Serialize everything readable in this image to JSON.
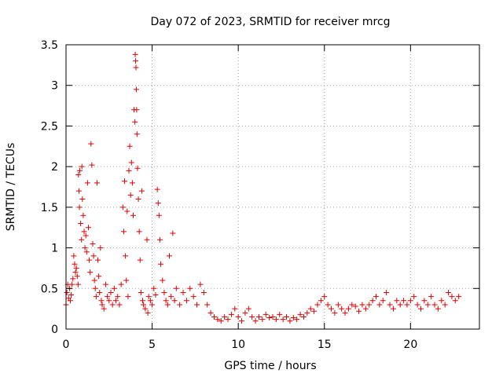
{
  "chart_data": {
    "type": "scatter",
    "title": "Day 072 of 2023, SRMTID for receiver mrcg",
    "xlabel": "GPS time / hours",
    "ylabel": "SRMTID / TECUs",
    "xlim": [
      0,
      24
    ],
    "ylim": [
      0,
      3.5
    ],
    "xticks": [
      0,
      5,
      10,
      15,
      20
    ],
    "yticks": [
      0,
      0.5,
      1,
      1.5,
      2,
      2.5,
      3,
      3.5
    ],
    "xtick_labels": [
      "0",
      "5",
      "10",
      "15",
      "20"
    ],
    "ytick_labels": [
      "0",
      "0.5",
      "1",
      "1.5",
      "2",
      "2.5",
      "3",
      "3.5"
    ],
    "grid": true,
    "marker": "+",
    "color": "#e00000",
    "series": [
      {
        "name": "SRMTID",
        "points": [
          [
            0.0,
            0.3
          ],
          [
            0.05,
            0.45
          ],
          [
            0.1,
            0.55
          ],
          [
            0.15,
            0.38
          ],
          [
            0.2,
            0.5
          ],
          [
            0.25,
            0.35
          ],
          [
            0.3,
            0.42
          ],
          [
            0.35,
            0.55
          ],
          [
            0.4,
            0.62
          ],
          [
            0.45,
            0.9
          ],
          [
            0.5,
            0.8
          ],
          [
            0.55,
            0.7
          ],
          [
            0.6,
            0.75
          ],
          [
            0.65,
            0.65
          ],
          [
            0.7,
            0.55
          ],
          [
            0.72,
            1.9
          ],
          [
            0.75,
            1.7
          ],
          [
            0.78,
            1.5
          ],
          [
            0.8,
            1.95
          ],
          [
            0.85,
            1.3
          ],
          [
            0.9,
            1.1
          ],
          [
            0.92,
            2.0
          ],
          [
            0.95,
            1.6
          ],
          [
            1.0,
            1.4
          ],
          [
            1.05,
            1.2
          ],
          [
            1.1,
            1.0
          ],
          [
            1.15,
            1.15
          ],
          [
            1.2,
            0.95
          ],
          [
            1.25,
            1.8
          ],
          [
            1.3,
            1.25
          ],
          [
            1.35,
            0.85
          ],
          [
            1.4,
            0.7
          ],
          [
            1.45,
            2.28
          ],
          [
            1.5,
            2.02
          ],
          [
            1.55,
            1.05
          ],
          [
            1.6,
            0.9
          ],
          [
            1.65,
            0.6
          ],
          [
            1.7,
            0.5
          ],
          [
            1.75,
            0.4
          ],
          [
            1.8,
            1.8
          ],
          [
            1.85,
            0.85
          ],
          [
            1.9,
            0.65
          ],
          [
            1.95,
            0.45
          ],
          [
            2.0,
            1.0
          ],
          [
            2.05,
            0.35
          ],
          [
            2.1,
            0.3
          ],
          [
            2.2,
            0.25
          ],
          [
            2.3,
            0.55
          ],
          [
            2.4,
            0.4
          ],
          [
            2.5,
            0.35
          ],
          [
            2.6,
            0.45
          ],
          [
            2.7,
            0.3
          ],
          [
            2.8,
            0.5
          ],
          [
            2.9,
            0.35
          ],
          [
            3.0,
            0.4
          ],
          [
            3.1,
            0.3
          ],
          [
            3.2,
            0.55
          ],
          [
            3.3,
            1.5
          ],
          [
            3.35,
            1.2
          ],
          [
            3.4,
            1.82
          ],
          [
            3.45,
            0.9
          ],
          [
            3.5,
            0.6
          ],
          [
            3.55,
            1.45
          ],
          [
            3.6,
            0.4
          ],
          [
            3.65,
            1.95
          ],
          [
            3.7,
            2.25
          ],
          [
            3.75,
            1.65
          ],
          [
            3.8,
            2.05
          ],
          [
            3.85,
            1.8
          ],
          [
            3.9,
            1.4
          ],
          [
            3.95,
            2.7
          ],
          [
            4.0,
            2.55
          ],
          [
            4.02,
            3.38
          ],
          [
            4.04,
            3.3
          ],
          [
            4.06,
            3.22
          ],
          [
            4.08,
            2.95
          ],
          [
            4.1,
            2.7
          ],
          [
            4.12,
            2.4
          ],
          [
            4.15,
            1.98
          ],
          [
            4.2,
            1.6
          ],
          [
            4.25,
            1.2
          ],
          [
            4.3,
            0.85
          ],
          [
            4.35,
            0.45
          ],
          [
            4.4,
            1.7
          ],
          [
            4.45,
            0.35
          ],
          [
            4.5,
            0.3
          ],
          [
            4.6,
            0.25
          ],
          [
            4.7,
            1.1
          ],
          [
            4.75,
            0.2
          ],
          [
            4.8,
            0.4
          ],
          [
            4.9,
            0.35
          ],
          [
            5.0,
            0.3
          ],
          [
            5.1,
            0.5
          ],
          [
            5.2,
            0.42
          ],
          [
            5.3,
            1.72
          ],
          [
            5.35,
            1.55
          ],
          [
            5.4,
            1.4
          ],
          [
            5.45,
            1.1
          ],
          [
            5.5,
            0.8
          ],
          [
            5.6,
            0.6
          ],
          [
            5.7,
            0.45
          ],
          [
            5.8,
            0.35
          ],
          [
            5.9,
            0.3
          ],
          [
            6.0,
            0.9
          ],
          [
            6.1,
            0.4
          ],
          [
            6.2,
            1.18
          ],
          [
            6.3,
            0.35
          ],
          [
            6.4,
            0.5
          ],
          [
            6.6,
            0.3
          ],
          [
            6.8,
            0.45
          ],
          [
            7.0,
            0.35
          ],
          [
            7.2,
            0.5
          ],
          [
            7.4,
            0.4
          ],
          [
            7.6,
            0.3
          ],
          [
            7.8,
            0.55
          ],
          [
            8.0,
            0.45
          ],
          [
            8.2,
            0.3
          ],
          [
            8.4,
            0.2
          ],
          [
            8.6,
            0.15
          ],
          [
            8.8,
            0.12
          ],
          [
            9.0,
            0.1
          ],
          [
            9.2,
            0.15
          ],
          [
            9.4,
            0.12
          ],
          [
            9.6,
            0.18
          ],
          [
            9.8,
            0.25
          ],
          [
            10.0,
            0.15
          ],
          [
            10.2,
            0.1
          ],
          [
            10.4,
            0.2
          ],
          [
            10.6,
            0.25
          ],
          [
            10.8,
            0.15
          ],
          [
            11.0,
            0.1
          ],
          [
            11.2,
            0.15
          ],
          [
            11.4,
            0.12
          ],
          [
            11.6,
            0.18
          ],
          [
            11.8,
            0.14
          ],
          [
            12.0,
            0.15
          ],
          [
            12.2,
            0.12
          ],
          [
            12.4,
            0.18
          ],
          [
            12.6,
            0.12
          ],
          [
            12.8,
            0.15
          ],
          [
            13.0,
            0.1
          ],
          [
            13.2,
            0.14
          ],
          [
            13.4,
            0.12
          ],
          [
            13.6,
            0.18
          ],
          [
            13.8,
            0.15
          ],
          [
            14.0,
            0.2
          ],
          [
            14.2,
            0.25
          ],
          [
            14.4,
            0.22
          ],
          [
            14.6,
            0.3
          ],
          [
            14.8,
            0.35
          ],
          [
            15.0,
            0.4
          ],
          [
            15.2,
            0.3
          ],
          [
            15.4,
            0.25
          ],
          [
            15.6,
            0.2
          ],
          [
            15.8,
            0.3
          ],
          [
            16.0,
            0.25
          ],
          [
            16.2,
            0.2
          ],
          [
            16.4,
            0.25
          ],
          [
            16.6,
            0.3
          ],
          [
            16.8,
            0.28
          ],
          [
            17.0,
            0.22
          ],
          [
            17.2,
            0.3
          ],
          [
            17.4,
            0.25
          ],
          [
            17.6,
            0.3
          ],
          [
            17.8,
            0.35
          ],
          [
            18.0,
            0.4
          ],
          [
            18.2,
            0.3
          ],
          [
            18.4,
            0.35
          ],
          [
            18.6,
            0.45
          ],
          [
            18.8,
            0.3
          ],
          [
            19.0,
            0.25
          ],
          [
            19.2,
            0.35
          ],
          [
            19.4,
            0.3
          ],
          [
            19.6,
            0.35
          ],
          [
            19.8,
            0.3
          ],
          [
            20.0,
            0.35
          ],
          [
            20.2,
            0.4
          ],
          [
            20.4,
            0.3
          ],
          [
            20.6,
            0.25
          ],
          [
            20.8,
            0.35
          ],
          [
            21.0,
            0.3
          ],
          [
            21.2,
            0.4
          ],
          [
            21.4,
            0.3
          ],
          [
            21.6,
            0.25
          ],
          [
            21.8,
            0.35
          ],
          [
            22.0,
            0.3
          ],
          [
            22.2,
            0.45
          ],
          [
            22.4,
            0.4
          ],
          [
            22.6,
            0.35
          ],
          [
            22.8,
            0.4
          ]
        ]
      }
    ]
  }
}
